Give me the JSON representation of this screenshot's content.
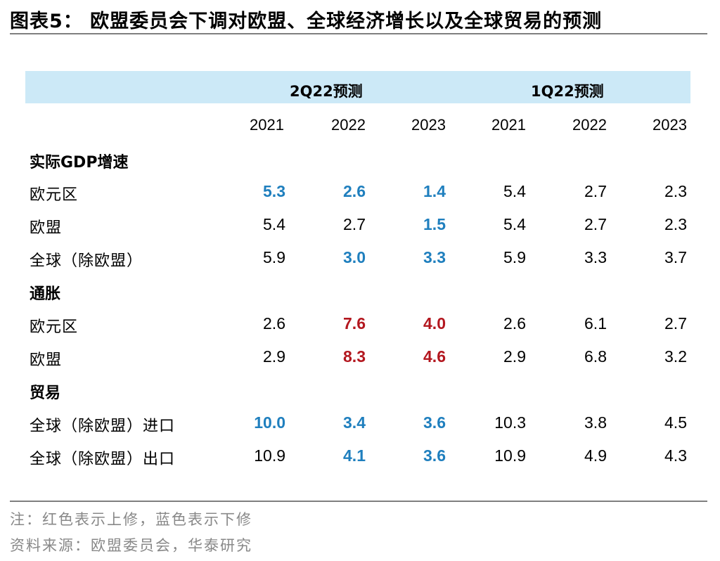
{
  "title": "图表5：  欧盟委员会下调对欧盟、全球经济增长以及全球贸易的预测",
  "groups": [
    "2Q22预测",
    "1Q22预测"
  ],
  "years": [
    "2021",
    "2022",
    "2023",
    "2021",
    "2022",
    "2023"
  ],
  "colors": {
    "upward_revision": "#b3171f",
    "downward_revision": "#1f7fbe",
    "header_band": "#cce9f7"
  },
  "sections": [
    {
      "label": "实际GDP增速",
      "rows": [
        {
          "label": "欧元区",
          "values": [
            "5.3",
            "2.6",
            "1.4",
            "5.4",
            "2.7",
            "2.3"
          ],
          "styles": [
            "down",
            "down",
            "down",
            "",
            "",
            ""
          ]
        },
        {
          "label": "欧盟",
          "values": [
            "5.4",
            "2.7",
            "1.5",
            "5.4",
            "2.7",
            "2.3"
          ],
          "styles": [
            "",
            "",
            "down",
            "",
            "",
            ""
          ]
        },
        {
          "label": "全球（除欧盟）",
          "values": [
            "5.9",
            "3.0",
            "3.3",
            "5.9",
            "3.3",
            "3.7"
          ],
          "styles": [
            "",
            "down",
            "down",
            "",
            "",
            ""
          ]
        }
      ]
    },
    {
      "label": "通胀",
      "rows": [
        {
          "label": "欧元区",
          "values": [
            "2.6",
            "7.6",
            "4.0",
            "2.6",
            "6.1",
            "2.7"
          ],
          "styles": [
            "",
            "up",
            "up",
            "",
            "",
            ""
          ]
        },
        {
          "label": "欧盟",
          "values": [
            "2.9",
            "8.3",
            "4.6",
            "2.9",
            "6.8",
            "3.2"
          ],
          "styles": [
            "",
            "up",
            "up",
            "",
            "",
            ""
          ]
        }
      ]
    },
    {
      "label": "贸易",
      "rows": [
        {
          "label": "全球（除欧盟）进口",
          "values": [
            "10.0",
            "3.4",
            "3.6",
            "10.3",
            "3.8",
            "4.5"
          ],
          "styles": [
            "down",
            "down",
            "down",
            "",
            "",
            ""
          ]
        },
        {
          "label": "全球（除欧盟）出口",
          "values": [
            "10.9",
            "4.1",
            "3.6",
            "10.9",
            "4.9",
            "4.3"
          ],
          "styles": [
            "",
            "down",
            "down",
            "",
            "",
            ""
          ]
        }
      ]
    }
  ],
  "notes": [
    "注：红色表示上修，蓝色表示下修",
    "资料来源：欧盟委员会，华泰研究"
  ]
}
